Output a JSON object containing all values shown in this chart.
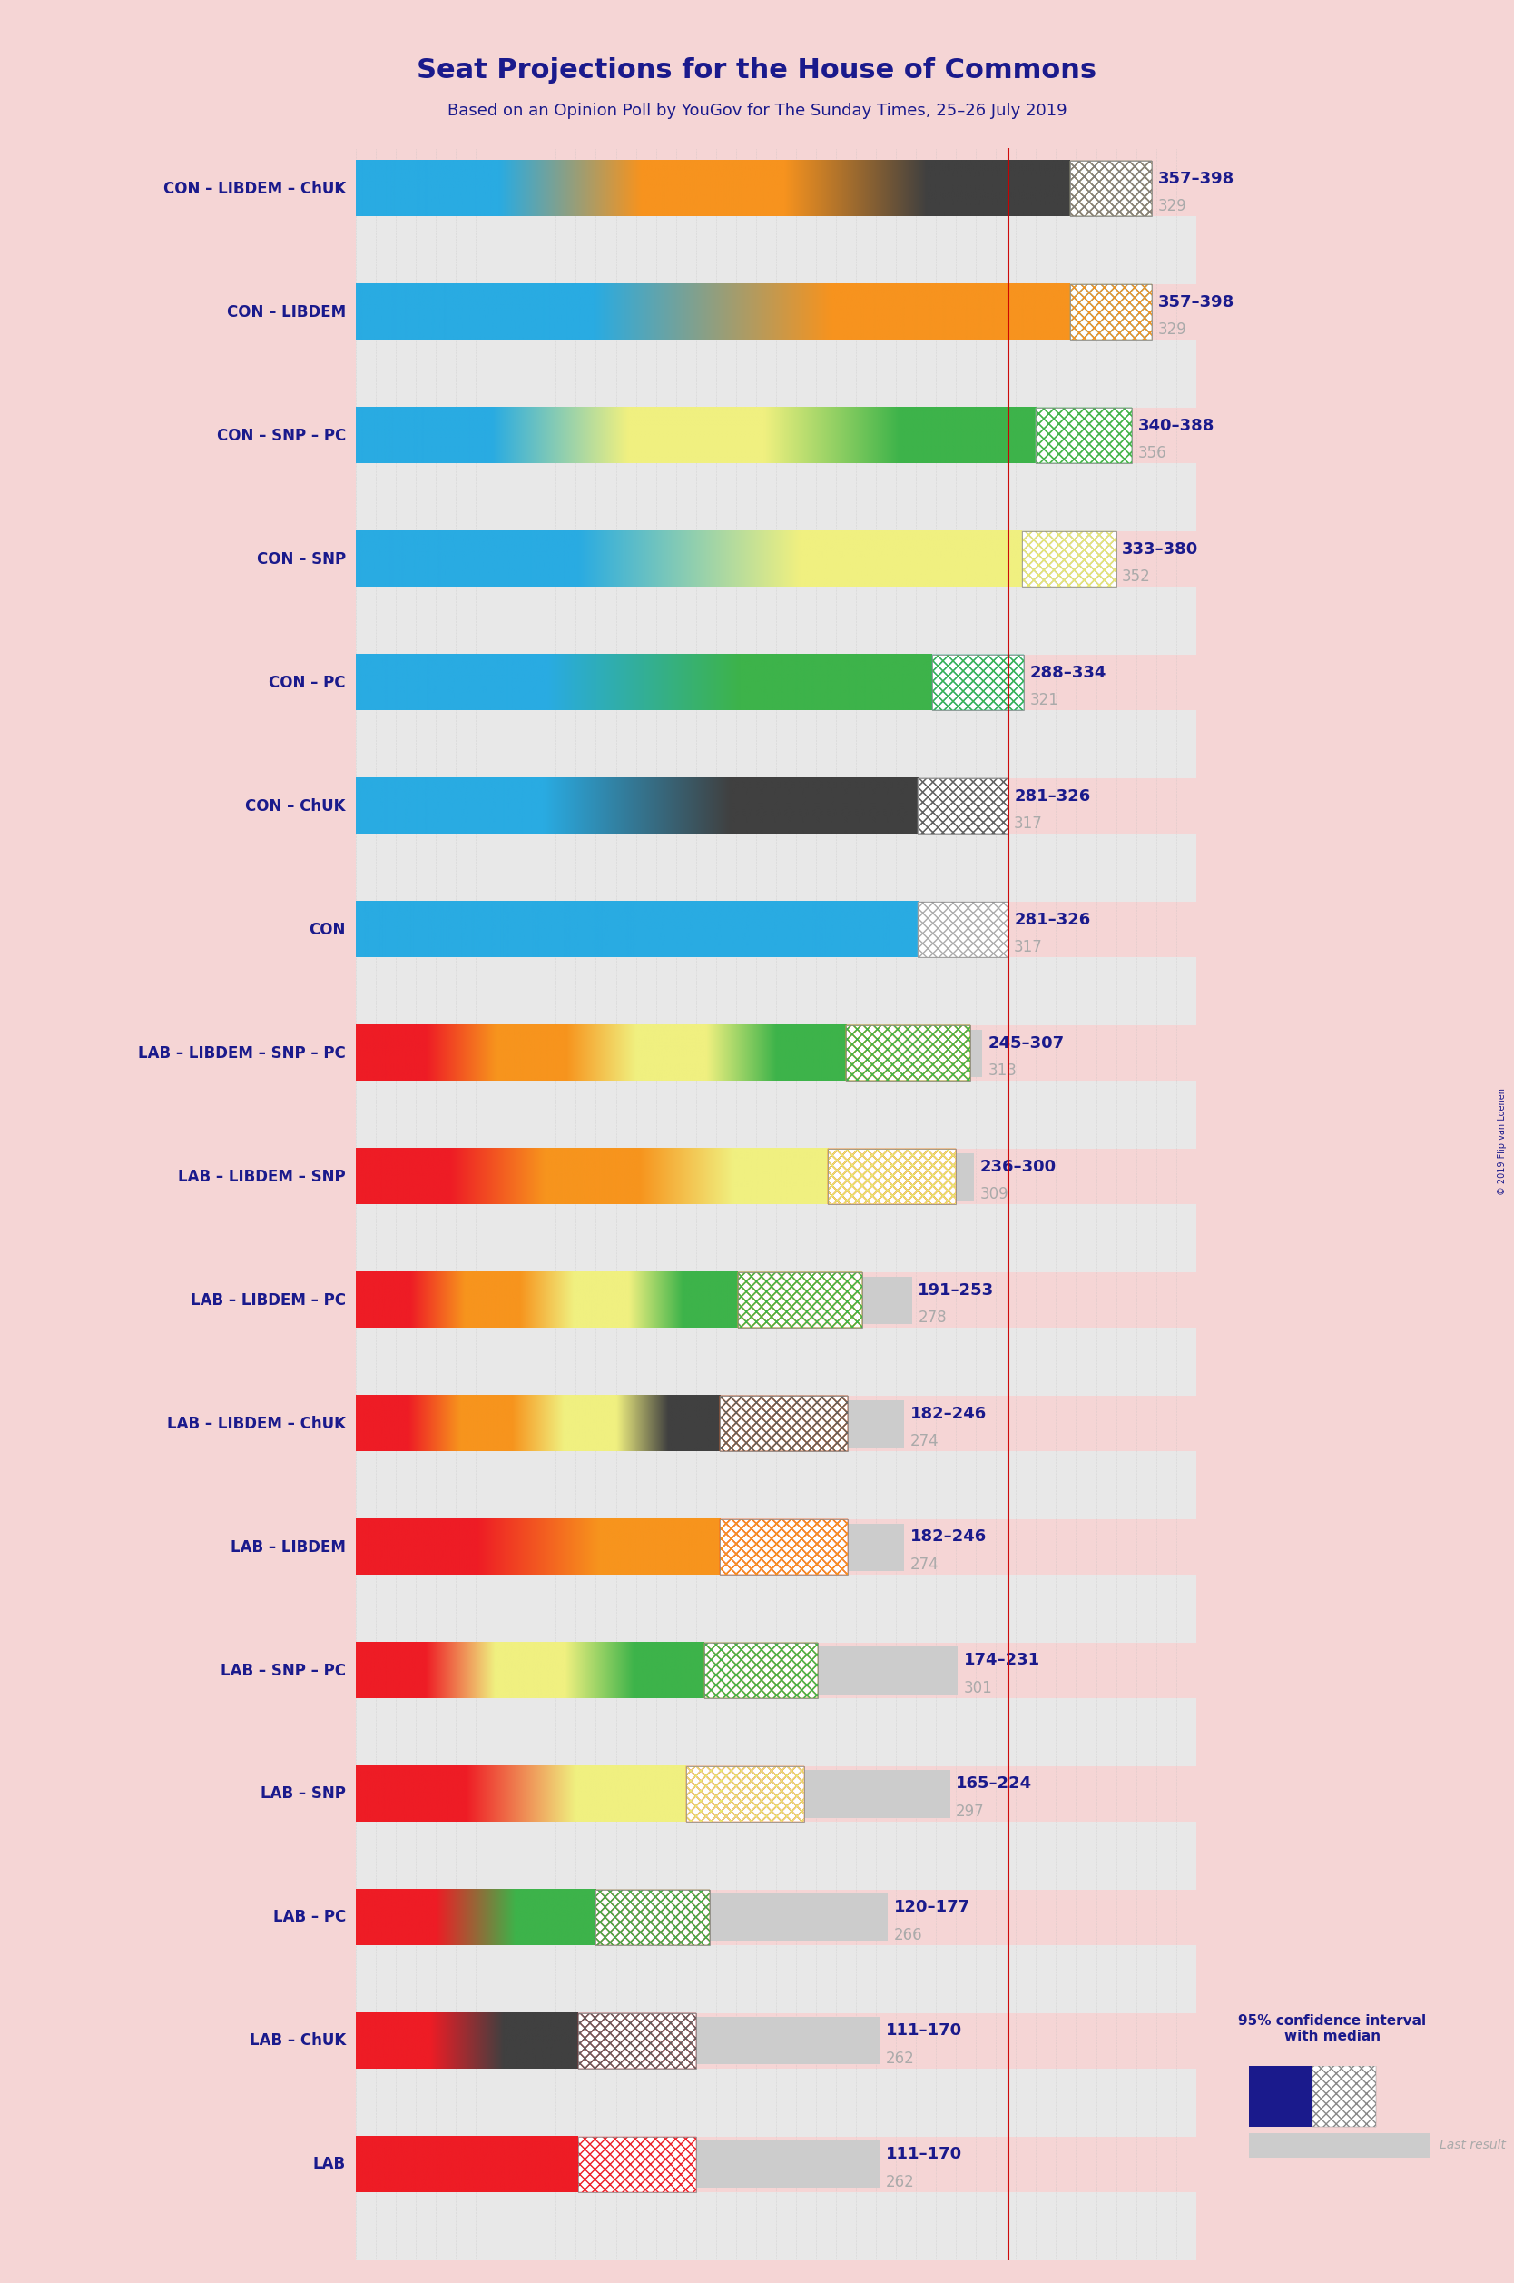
{
  "title": "Seat Projections for the House of Commons",
  "subtitle": "Based on an Opinion Poll by YouGov for The Sunday Times, 25–26 July 2019",
  "background_color": "#f5d5d5",
  "title_color": "#1a1a8c",
  "subtitle_color": "#1a1a8c",
  "majority_line": 326,
  "coalitions": [
    {
      "label": "CON – LIBDEM – ChUK",
      "low": 357,
      "high": 398,
      "median": 329,
      "gradient": [
        "#29abe2",
        "#29abe2",
        "#f7931e",
        "#f7931e",
        "#404040",
        "#404040"
      ],
      "hatch_colors": [
        "#29abe2",
        "#f7931e",
        "#808080"
      ]
    },
    {
      "label": "CON – LIBDEM",
      "low": 357,
      "high": 398,
      "median": 329,
      "gradient": [
        "#29abe2",
        "#29abe2",
        "#f7931e",
        "#f7931e"
      ],
      "hatch_colors": [
        "#29abe2",
        "#f7931e"
      ]
    },
    {
      "label": "CON – SNP – PC",
      "low": 340,
      "high": 388,
      "median": 356,
      "gradient": [
        "#29abe2",
        "#29abe2",
        "#f0f080",
        "#f0f080",
        "#3db34a",
        "#3db34a"
      ],
      "hatch_colors": [
        "#29abe2",
        "#e8e870",
        "#3db34a"
      ]
    },
    {
      "label": "CON – SNP",
      "low": 333,
      "high": 380,
      "median": 352,
      "gradient": [
        "#29abe2",
        "#29abe2",
        "#f0f080",
        "#f0f080"
      ],
      "hatch_colors": [
        "#aaaaaa",
        "#e8e870"
      ]
    },
    {
      "label": "CON – PC",
      "low": 288,
      "high": 334,
      "median": 321,
      "gradient": [
        "#29abe2",
        "#29abe2",
        "#3db34a",
        "#3db34a"
      ],
      "hatch_colors": [
        "#29abe2",
        "#3db34a"
      ]
    },
    {
      "label": "CON – ChUK",
      "low": 281,
      "high": 326,
      "median": 317,
      "gradient": [
        "#29abe2",
        "#29abe2",
        "#404040",
        "#404040"
      ],
      "hatch_colors": [
        "#aaaaaa",
        "#606060"
      ]
    },
    {
      "label": "CON",
      "low": 281,
      "high": 326,
      "median": 317,
      "gradient": [
        "#29abe2",
        "#29abe2"
      ],
      "hatch_colors": [
        "#aaaaaa"
      ]
    },
    {
      "label": "LAB – LIBDEM – SNP – PC",
      "low": 245,
      "high": 307,
      "median": 313,
      "gradient": [
        "#ee1c25",
        "#ee1c25",
        "#f7941d",
        "#f7941d",
        "#f0f080",
        "#f0f080",
        "#3db34a",
        "#3db34a"
      ],
      "hatch_colors": [
        "#ee1c25",
        "#f7941d",
        "#e8e870",
        "#3db34a"
      ]
    },
    {
      "label": "LAB – LIBDEM – SNP",
      "low": 236,
      "high": 300,
      "median": 309,
      "gradient": [
        "#ee1c25",
        "#ee1c25",
        "#f7941d",
        "#f7941d",
        "#f0f080",
        "#f0f080"
      ],
      "hatch_colors": [
        "#ee1c25",
        "#f7941d",
        "#e8e870"
      ]
    },
    {
      "label": "LAB – LIBDEM – PC",
      "low": 191,
      "high": 253,
      "median": 278,
      "gradient": [
        "#ee1c25",
        "#ee1c25",
        "#f7941d",
        "#f7941d",
        "#f0f080",
        "#f0f080",
        "#3db34a",
        "#3db34a"
      ],
      "hatch_colors": [
        "#ee1c25",
        "#f7941d",
        "#e8e870",
        "#3db34a"
      ]
    },
    {
      "label": "LAB – LIBDEM – ChUK",
      "low": 182,
      "high": 246,
      "median": 274,
      "gradient": [
        "#ee1c25",
        "#ee1c25",
        "#f7941d",
        "#f7941d",
        "#f0f080",
        "#f0f080",
        "#404040",
        "#404040"
      ],
      "hatch_colors": [
        "#ee1c25",
        "#f7941d",
        "#606060"
      ]
    },
    {
      "label": "LAB – LIBDEM",
      "low": 182,
      "high": 246,
      "median": 274,
      "gradient": [
        "#ee1c25",
        "#ee1c25",
        "#f7941d",
        "#f7941d"
      ],
      "hatch_colors": [
        "#ee1c25",
        "#f7941d"
      ]
    },
    {
      "label": "LAB – SNP – PC",
      "low": 174,
      "high": 231,
      "median": 301,
      "gradient": [
        "#ee1c25",
        "#ee1c25",
        "#f0f080",
        "#f0f080",
        "#3db34a",
        "#3db34a"
      ],
      "hatch_colors": [
        "#ee1c25",
        "#e8e870",
        "#3db34a"
      ]
    },
    {
      "label": "LAB – SNP",
      "low": 165,
      "high": 224,
      "median": 297,
      "gradient": [
        "#ee1c25",
        "#ee1c25",
        "#f0f080",
        "#f0f080"
      ],
      "hatch_colors": [
        "#ee1c25",
        "#e8e870"
      ]
    },
    {
      "label": "LAB – PC",
      "low": 120,
      "high": 177,
      "median": 266,
      "gradient": [
        "#ee1c25",
        "#ee1c25",
        "#3db34a",
        "#3db34a"
      ],
      "hatch_colors": [
        "#ee1c25",
        "#3db34a"
      ]
    },
    {
      "label": "LAB – ChUK",
      "low": 111,
      "high": 170,
      "median": 262,
      "gradient": [
        "#ee1c25",
        "#ee1c25",
        "#404040",
        "#404040"
      ],
      "hatch_colors": [
        "#ee1c25",
        "#606060"
      ]
    },
    {
      "label": "LAB",
      "low": 111,
      "high": 170,
      "median": 262,
      "gradient": [
        "#ee1c25",
        "#ee1c25"
      ],
      "hatch_colors": [
        "#ee1c25"
      ]
    }
  ]
}
